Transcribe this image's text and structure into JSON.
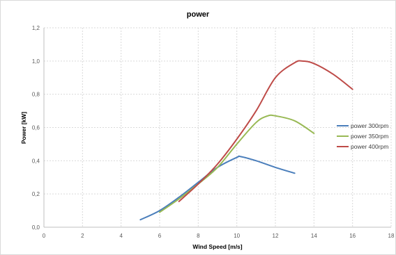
{
  "chart_data": {
    "type": "line",
    "title": "power",
    "xlabel": "Wind Speed [m/s]",
    "ylabel": "Power [kW]",
    "xlim": [
      0,
      18
    ],
    "ylim": [
      0,
      1.2
    ],
    "xticks": [
      0,
      2,
      4,
      6,
      8,
      10,
      12,
      14,
      16,
      18
    ],
    "yticks": [
      0,
      0.2,
      0.4,
      0.6,
      0.8,
      1.0,
      1.2
    ],
    "xtick_labels": [
      "0",
      "2",
      "4",
      "6",
      "8",
      "10",
      "12",
      "14",
      "16",
      "18"
    ],
    "ytick_labels": [
      "0,0",
      "0,2",
      "0,4",
      "0,6",
      "0,8",
      "1,0",
      "1,2"
    ],
    "grid": true,
    "legend": "right",
    "series": [
      {
        "name": "power 300rpm",
        "color": "#4a7ebb",
        "x": [
          5,
          6,
          7,
          8,
          9,
          10,
          10.2,
          11,
          12,
          13
        ],
        "y": [
          0.045,
          0.1,
          0.18,
          0.27,
          0.36,
          0.42,
          0.425,
          0.4,
          0.36,
          0.325
        ]
      },
      {
        "name": "power 350rpm",
        "color": "#98b954",
        "x": [
          6,
          7,
          8,
          9,
          10,
          11,
          11.6,
          12,
          13,
          14
        ],
        "y": [
          0.09,
          0.17,
          0.26,
          0.36,
          0.5,
          0.63,
          0.67,
          0.67,
          0.64,
          0.565
        ]
      },
      {
        "name": "power 400rpm",
        "color": "#be4b48",
        "x": [
          7,
          8,
          9,
          10,
          11,
          12,
          13,
          13.4,
          14,
          15,
          16
        ],
        "y": [
          0.155,
          0.26,
          0.38,
          0.53,
          0.7,
          0.9,
          0.99,
          1.0,
          0.985,
          0.92,
          0.83
        ]
      }
    ]
  }
}
